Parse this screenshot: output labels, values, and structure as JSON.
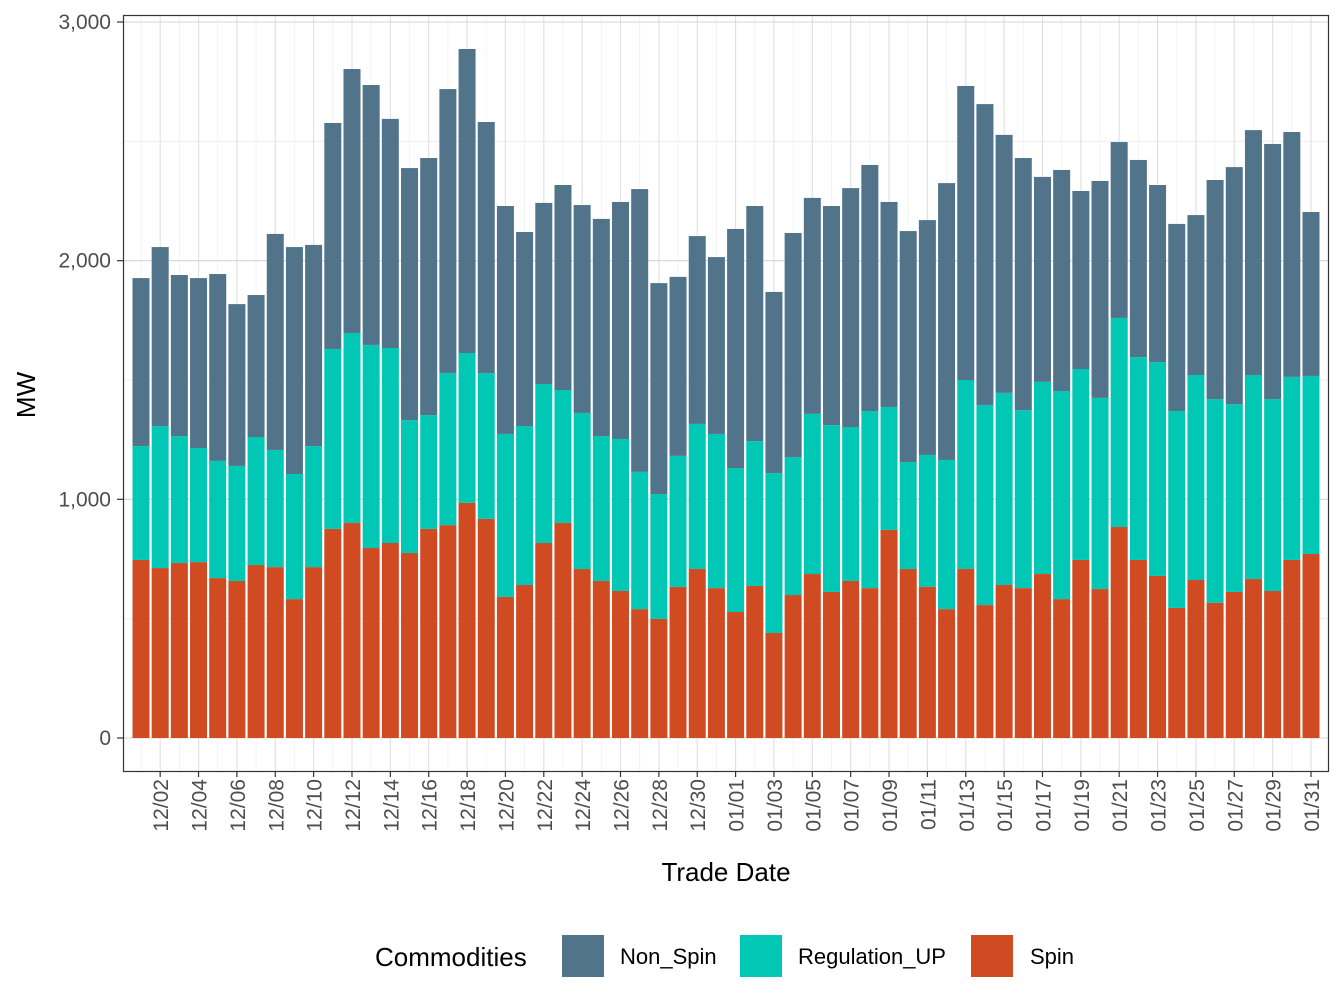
{
  "chart_data": {
    "type": "bar",
    "stacked": true,
    "xlabel": "Trade Date",
    "ylabel": "MW",
    "ylim": [
      -140,
      3000
    ],
    "yticks": [
      0,
      1000,
      2000,
      3000
    ],
    "ytick_labels": [
      "0",
      "1,000",
      "2,000",
      "3,000"
    ],
    "grid": true,
    "legend": {
      "title": "Commodities",
      "position": "bottom"
    },
    "categories": [
      "12/01",
      "12/02",
      "12/03",
      "12/04",
      "12/05",
      "12/06",
      "12/07",
      "12/08",
      "12/09",
      "12/10",
      "12/11",
      "12/12",
      "12/13",
      "12/14",
      "12/15",
      "12/16",
      "12/17",
      "12/18",
      "12/19",
      "12/20",
      "12/21",
      "12/22",
      "12/23",
      "12/24",
      "12/25",
      "12/26",
      "12/27",
      "12/28",
      "12/29",
      "12/30",
      "12/31",
      "01/01",
      "01/02",
      "01/03",
      "01/04",
      "01/05",
      "01/06",
      "01/07",
      "01/08",
      "01/09",
      "01/10",
      "01/11",
      "01/12",
      "01/13",
      "01/14",
      "01/15",
      "01/16",
      "01/17",
      "01/18",
      "01/19",
      "01/20",
      "01/21",
      "01/22",
      "01/23",
      "01/24",
      "01/25",
      "01/26",
      "01/27",
      "01/28",
      "01/29",
      "01/30",
      "01/31"
    ],
    "series": [
      {
        "name": "Spin",
        "color": "#D04A22",
        "values": [
          746,
          712,
          733,
          737,
          670,
          658,
          725,
          716,
          582,
          716,
          876,
          901,
          796,
          817,
          775,
          876,
          892,
          985,
          918,
          591,
          641,
          817,
          901,
          708,
          658,
          616,
          540,
          499,
          633,
          708,
          628,
          528,
          637,
          440,
          599,
          687,
          612,
          658,
          628,
          872,
          708,
          633,
          540,
          708,
          557,
          641,
          628,
          687,
          582,
          746,
          624,
          884,
          746,
          679,
          545,
          662,
          566,
          612,
          666,
          616,
          746,
          771
        ]
      },
      {
        "name": "Regulation_UP",
        "color": "#00C8B4",
        "values": [
          477,
          595,
          532,
          478,
          491,
          482,
          536,
          491,
          524,
          507,
          754,
          796,
          851,
          817,
          557,
          477,
          637,
          628,
          611,
          683,
          666,
          666,
          557,
          654,
          607,
          637,
          575,
          523,
          549,
          608,
          646,
          603,
          607,
          670,
          578,
          671,
          699,
          645,
          742,
          515,
          448,
          553,
          625,
          792,
          838,
          805,
          746,
          805,
          872,
          800,
          801,
          876,
          850,
          896,
          825,
          859,
          854,
          787,
          855,
          804,
          767,
          746
        ]
      },
      {
        "name": "Non_Spin",
        "color": "#51748B",
        "values": [
          704,
          750,
          675,
          712,
          783,
          678,
          595,
          905,
          951,
          843,
          947,
          1106,
          1089,
          960,
          1056,
          1077,
          1190,
          1274,
          1052,
          955,
          813,
          759,
          859,
          871,
          910,
          993,
          1185,
          884,
          750,
          787,
          741,
          1002,
          985,
          759,
          939,
          905,
          918,
          1001,
          1031,
          859,
          968,
          984,
          1160,
          1232,
          1261,
          1081,
          1056,
          859,
          926,
          746,
          909,
          737,
          826,
          742,
          784,
          670,
          918,
          993,
          1026,
          1069,
          1026,
          687
        ]
      }
    ],
    "legend_order": [
      "Non_Spin",
      "Regulation_UP",
      "Spin"
    ]
  }
}
